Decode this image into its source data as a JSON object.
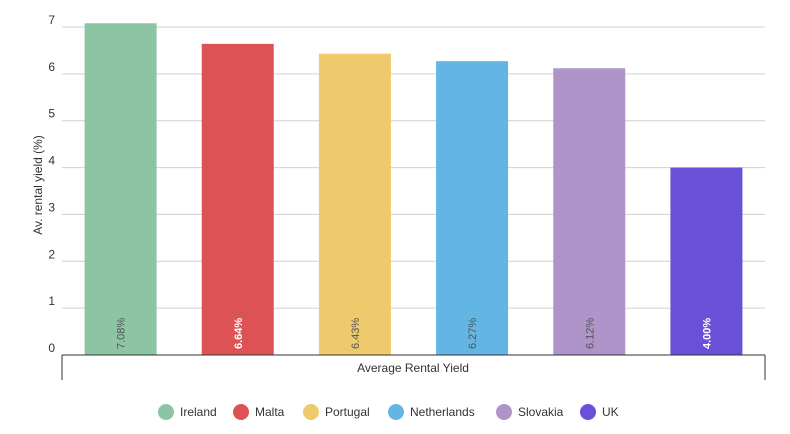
{
  "chart_data": {
    "type": "bar",
    "title": "",
    "xlabel": "Average Rental Yield",
    "ylabel": "Av. rental yield (%)",
    "ylim": [
      0,
      7
    ],
    "yticks": [
      "0",
      "1",
      "2",
      "3",
      "4",
      "5",
      "6",
      "7"
    ],
    "grid": true,
    "legend_position": "bottom",
    "series": [
      {
        "name": "Ireland",
        "value": 7.08,
        "label": "7.08%",
        "color": "#8dc4a4",
        "label_color": "#555555"
      },
      {
        "name": "Malta",
        "value": 6.64,
        "label": "6.64%",
        "color": "#dd5355",
        "label_color": "#ffffff"
      },
      {
        "name": "Portugal",
        "value": 6.43,
        "label": "6.43%",
        "color": "#efca6c",
        "label_color": "#555555"
      },
      {
        "name": "Netherlands",
        "value": 6.27,
        "label": "6.27%",
        "color": "#63b6e4",
        "label_color": "#555555"
      },
      {
        "name": "Slovakia",
        "value": 6.12,
        "label": "6.12%",
        "color": "#ae94c8",
        "label_color": "#555555"
      },
      {
        "name": "UK",
        "value": 4.0,
        "label": "4.00%",
        "color": "#6a50d7",
        "label_color": "#ffffff"
      }
    ]
  }
}
